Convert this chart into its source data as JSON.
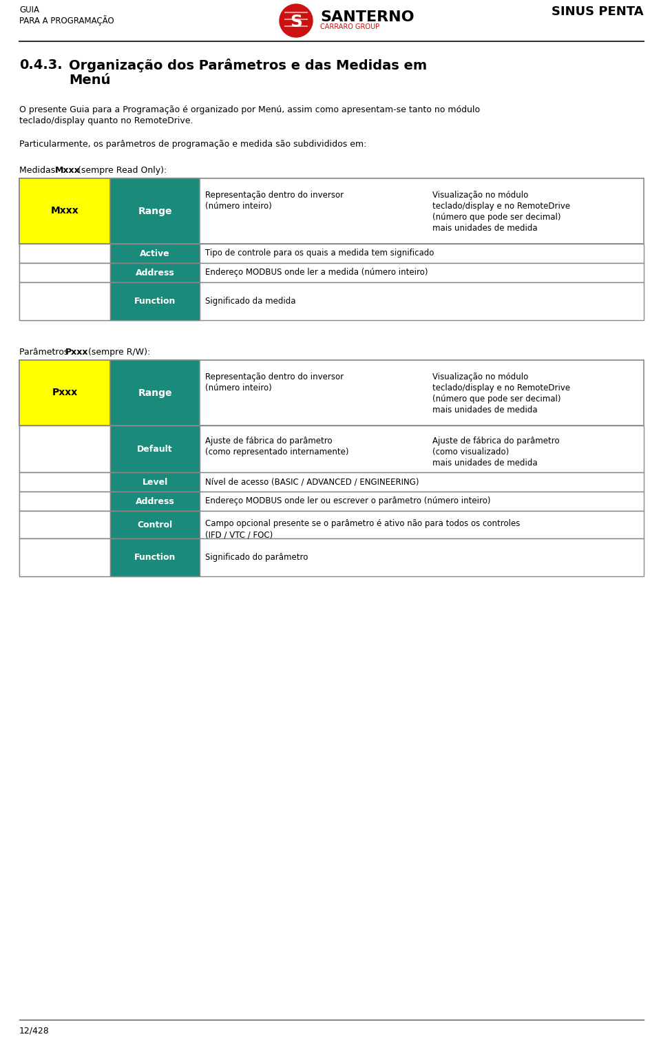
{
  "bg_color": "#ffffff",
  "header_left_line1": "GUIA",
  "header_left_line2": "PARA A PROGRAMAÇÃO",
  "header_right": "SINUS PENTA",
  "footer_text": "12/428",
  "title_number": "0.4.3.",
  "title_line1": "Organização dos Parâmetros e das Medidas em",
  "title_line2": "Menú",
  "intro_line1": "O presente Guia para a Programação é organizado por Menú, assim como apresentam-se tanto no módulo",
  "intro_line2": "teclado/display quanto no RemoteDrive.",
  "particular_text": "Particularmente, os parâmetros de programação e medida são subdivididos em:",
  "medidas_label_normal": "Medidas ",
  "medidas_label_bold": "Mxxx",
  "medidas_label_rest": " (sempre Read Only):",
  "parametros_label_normal": "Parâmetros ",
  "parametros_label_bold": "Pxxx",
  "parametros_label_rest": " (sempre R/W):",
  "teal_color": "#1a8a7a",
  "yellow_color": "#ffff00",
  "table_border": "#888888",
  "santerno_red": "#cc1111",
  "santerno_text": "SANTERNO",
  "carraro_text": "CARRARO GROUP",
  "table1_mxxx": "Mxxx",
  "table1_range": "Range",
  "table1_col3_line1": "Representação dentro do inversor",
  "table1_col3_line2": "(número inteiro)",
  "table1_col4_line1": "Visualização no módulo",
  "table1_col4_line2": "teclado/display e no RemoteDrive",
  "table1_col4_line3": "(número que pode ser decimal)",
  "table1_col4_line4": "mais unidades de medida",
  "table1_active_label": "Active",
  "table1_active_text": "Tipo de controle para os quais a medida tem significado",
  "table1_address_label": "Address",
  "table1_address_text": "Endereço MODBUS onde ler a medida (número inteiro)",
  "table1_function_label": "Function",
  "table1_function_text": "Significado da medida",
  "table2_pxxx": "Pxxx",
  "table2_range": "Range",
  "table2_col3_line1": "Representação dentro do inversor",
  "table2_col3_line2": "(número inteiro)",
  "table2_col4_line1": "Visualização no módulo",
  "table2_col4_line2": "teclado/display e no RemoteDrive",
  "table2_col4_line3": "(número que pode ser decimal)",
  "table2_col4_line4": "mais unidades de medida",
  "table2_default_label": "Default",
  "table2_default_col3_line1": "Ajuste de fábrica do parâmetro",
  "table2_default_col3_line2": "(como representado internamente)",
  "table2_default_col4_line1": "Ajuste de fábrica do parâmetro",
  "table2_default_col4_line2": "(como visualizado)",
  "table2_default_col4_line3": "mais unidades de medida",
  "table2_level_label": "Level",
  "table2_level_text": "Nível de acesso (BASIC / ADVANCED / ENGINEERING)",
  "table2_address_label": "Address",
  "table2_address_text": "Endereço MODBUS onde ler ou escrever o parâmetro (número inteiro)",
  "table2_control_label": "Control",
  "table2_control_line1": "Campo opcional presente se o parâmetro é ativo não para todos os controles",
  "table2_control_line2": "(IFD / VTC / FOC)",
  "table2_function_label": "Function",
  "table2_function_text": "Significado do parâmetro"
}
